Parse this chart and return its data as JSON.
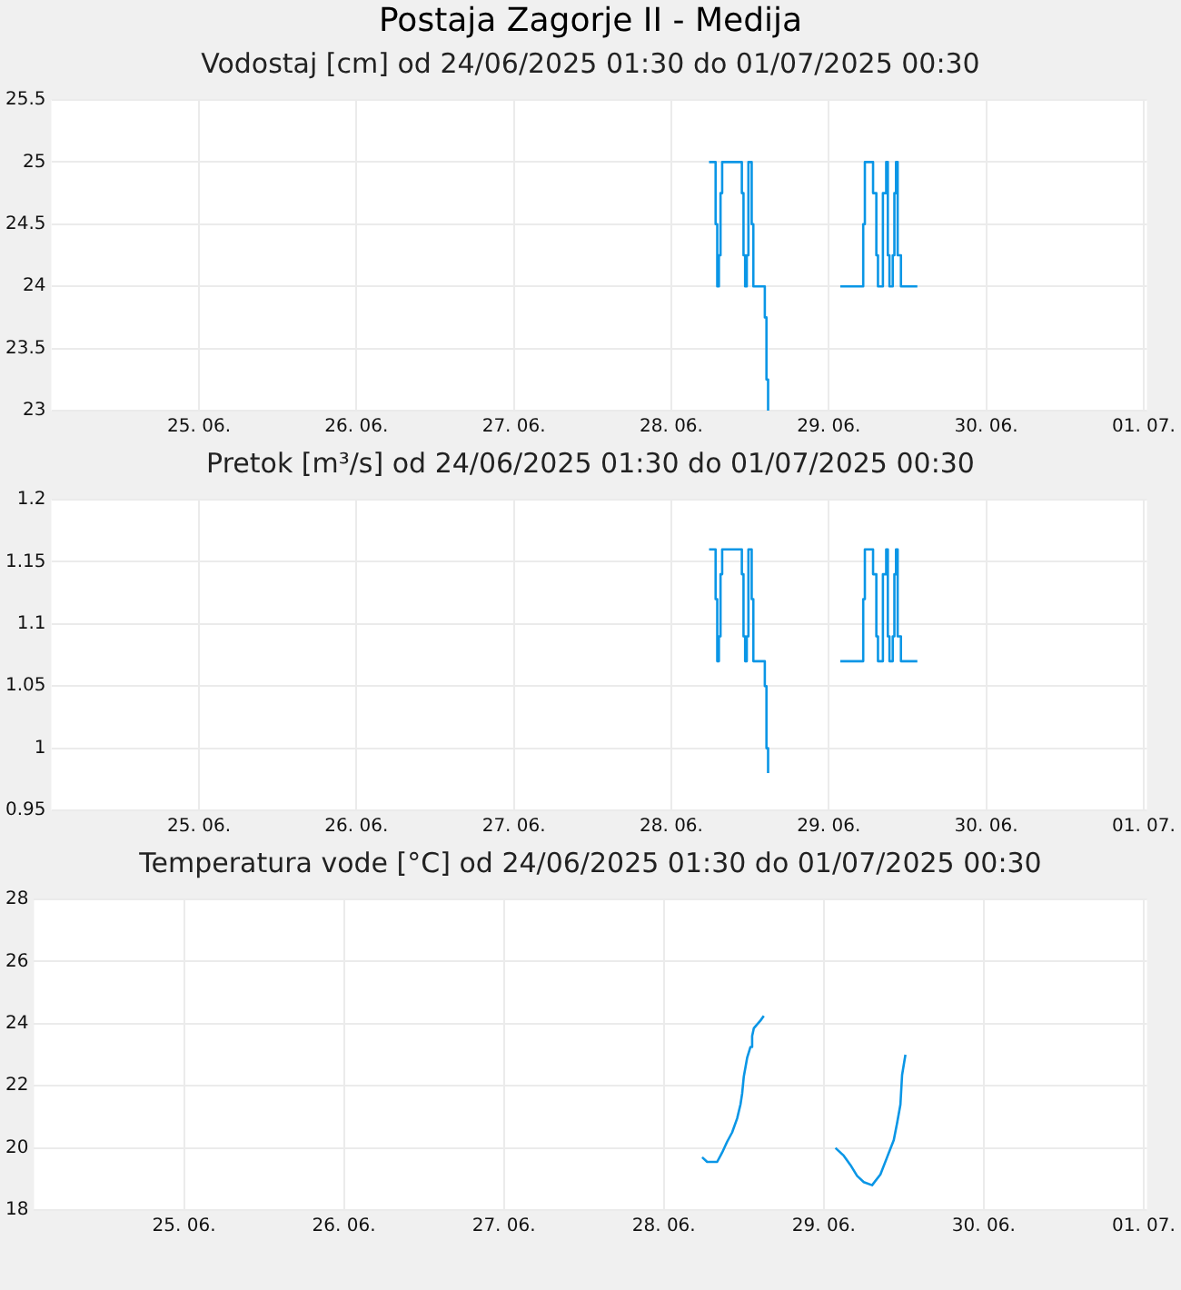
{
  "chart_data": [
    {
      "type": "step",
      "title": "Postaja Zagorje II - Medija",
      "subtitle": "Vodostaj [cm] od 24/06/2025 01:30 do 01/07/2025 00:30",
      "x": [
        "2025-06-28T05:45",
        "2025-06-28T06:45",
        "2025-06-28T07:00",
        "2025-06-28T07:15",
        "2025-06-28T07:30",
        "2025-06-28T07:45",
        "2025-06-28T10:45",
        "2025-06-28T11:00",
        "2025-06-28T11:15",
        "2025-06-28T11:30",
        "2025-06-28T11:45",
        "2025-06-28T12:15",
        "2025-06-28T12:30",
        "2025-06-28T14:15",
        "2025-06-28T14:30",
        "2025-06-28T14:45",
        "2025-06-28T15:00",
        "2025-06-29T01:45",
        "2025-06-29T05:15",
        "2025-06-29T05:30",
        "2025-06-29T06:45",
        "2025-06-29T07:15",
        "2025-06-29T07:30",
        "2025-06-29T08:15",
        "2025-06-29T08:45",
        "2025-06-29T09:00",
        "2025-06-29T09:15",
        "2025-06-29T09:45",
        "2025-06-29T10:00",
        "2025-06-29T10:15",
        "2025-06-29T10:30",
        "2025-06-29T11:00",
        "2025-06-29T13:30"
      ],
      "series": [
        {
          "color": "#0a96e6",
          "values": [
            25,
            24.5,
            24,
            24.25,
            24.75,
            25,
            24.75,
            24.25,
            24,
            24.25,
            25,
            24.5,
            24,
            23.75,
            23.25,
            23,
            null,
            24,
            24.5,
            25,
            24.75,
            24.25,
            24,
            24.75,
            25,
            24.25,
            24,
            24.25,
            24.75,
            25,
            24.25,
            24,
            24
          ]
        }
      ],
      "xlim": [
        "2025-06-24T01:30",
        "2025-07-01T00:30"
      ],
      "xticks": [
        {
          "value": "2025-06-25",
          "label": "25. 06."
        },
        {
          "value": "2025-06-26",
          "label": "26. 06."
        },
        {
          "value": "2025-06-27",
          "label": "27. 06."
        },
        {
          "value": "2025-06-28",
          "label": "28. 06."
        },
        {
          "value": "2025-06-29",
          "label": "29. 06."
        },
        {
          "value": "2025-06-30",
          "label": "30. 06."
        },
        {
          "value": "2025-07-01",
          "label": "01. 07."
        }
      ],
      "ylim": [
        23,
        25.5
      ],
      "yticks": [
        23,
        23.5,
        24,
        24.5,
        25,
        25.5
      ],
      "grid": true,
      "legend": false,
      "marker": "none"
    },
    {
      "type": "step",
      "subtitle": "Pretok [m³/s] od 24/06/2025 01:30 do 01/07/2025 00:30",
      "x": [
        "2025-06-28T05:45",
        "2025-06-28T06:45",
        "2025-06-28T07:00",
        "2025-06-28T07:15",
        "2025-06-28T07:30",
        "2025-06-28T07:45",
        "2025-06-28T10:45",
        "2025-06-28T11:00",
        "2025-06-28T11:15",
        "2025-06-28T11:30",
        "2025-06-28T11:45",
        "2025-06-28T12:15",
        "2025-06-28T12:30",
        "2025-06-28T14:15",
        "2025-06-28T14:30",
        "2025-06-28T14:45",
        "2025-06-28T15:00",
        "2025-06-29T01:45",
        "2025-06-29T05:15",
        "2025-06-29T05:30",
        "2025-06-29T06:45",
        "2025-06-29T07:15",
        "2025-06-29T07:30",
        "2025-06-29T08:15",
        "2025-06-29T08:45",
        "2025-06-29T09:00",
        "2025-06-29T09:15",
        "2025-06-29T09:45",
        "2025-06-29T10:00",
        "2025-06-29T10:15",
        "2025-06-29T10:30",
        "2025-06-29T11:00",
        "2025-06-29T13:30"
      ],
      "series": [
        {
          "color": "#0a96e6",
          "values": [
            1.16,
            1.12,
            1.07,
            1.09,
            1.14,
            1.16,
            1.14,
            1.09,
            1.07,
            1.09,
            1.16,
            1.12,
            1.07,
            1.05,
            1.0,
            0.98,
            null,
            1.07,
            1.12,
            1.16,
            1.14,
            1.09,
            1.07,
            1.14,
            1.16,
            1.09,
            1.07,
            1.09,
            1.14,
            1.16,
            1.09,
            1.07,
            1.07
          ]
        }
      ],
      "xlim": [
        "2025-06-24T01:30",
        "2025-07-01T00:30"
      ],
      "xticks": [
        {
          "value": "2025-06-25",
          "label": "25. 06."
        },
        {
          "value": "2025-06-26",
          "label": "26. 06."
        },
        {
          "value": "2025-06-27",
          "label": "27. 06."
        },
        {
          "value": "2025-06-28",
          "label": "28. 06."
        },
        {
          "value": "2025-06-29",
          "label": "29. 06."
        },
        {
          "value": "2025-06-30",
          "label": "30. 06."
        },
        {
          "value": "2025-07-01",
          "label": "01. 07."
        }
      ],
      "ylim": [
        0.95,
        1.2
      ],
      "yticks": [
        0.95,
        1,
        1.05,
        1.1,
        1.15,
        1.2
      ],
      "grid": true,
      "legend": false,
      "marker": "none"
    },
    {
      "type": "line",
      "subtitle": "Temperatura vode [°C] od 24/06/2025 01:30 do 01/07/2025 00:30",
      "x": [
        "2025-06-28T05:45",
        "2025-06-28T06:30",
        "2025-06-28T08:00",
        "2025-06-28T08:45",
        "2025-06-28T09:30",
        "2025-06-28T10:15",
        "2025-06-28T11:00",
        "2025-06-28T11:30",
        "2025-06-28T11:45",
        "2025-06-28T12:00",
        "2025-06-28T12:30",
        "2025-06-28T13:00",
        "2025-06-28T13:15",
        "2025-06-28T13:30",
        "2025-06-28T14:30",
        "2025-06-28T15:00",
        "2025-06-29T00:00",
        "2025-06-29T01:45",
        "2025-06-29T03:00",
        "2025-06-29T04:00",
        "2025-06-29T05:00",
        "2025-06-29T06:00",
        "2025-06-29T07:15",
        "2025-06-29T08:30",
        "2025-06-29T09:30",
        "2025-06-29T10:30",
        "2025-06-29T11:00",
        "2025-06-29T11:30",
        "2025-06-29T11:45",
        "2025-06-29T12:15"
      ],
      "series": [
        {
          "color": "#0a96e6",
          "values": [
            19.7,
            19.55,
            19.55,
            19.85,
            20.2,
            20.5,
            20.95,
            21.4,
            21.75,
            22.3,
            22.9,
            23.25,
            23.6,
            23.85,
            24.1,
            24.25,
            null,
            20.0,
            19.75,
            19.45,
            19.1,
            18.9,
            18.8,
            19.15,
            19.7,
            20.25,
            20.8,
            21.4,
            22.35,
            23.0
          ]
        }
      ],
      "xlim": [
        "2025-06-24T01:30",
        "2025-07-01T00:30"
      ],
      "xticks": [
        {
          "value": "2025-06-25",
          "label": "25. 06."
        },
        {
          "value": "2025-06-26",
          "label": "26. 06."
        },
        {
          "value": "2025-06-27",
          "label": "27. 06."
        },
        {
          "value": "2025-06-28",
          "label": "28. 06."
        },
        {
          "value": "2025-06-29",
          "label": "29. 06."
        },
        {
          "value": "2025-06-30",
          "label": "30. 06."
        },
        {
          "value": "2025-07-01",
          "label": "01. 07."
        }
      ],
      "ylim": [
        18,
        28
      ],
      "yticks": [
        18,
        20,
        22,
        24,
        26,
        28
      ],
      "grid": true,
      "legend": false,
      "marker": "none"
    }
  ]
}
